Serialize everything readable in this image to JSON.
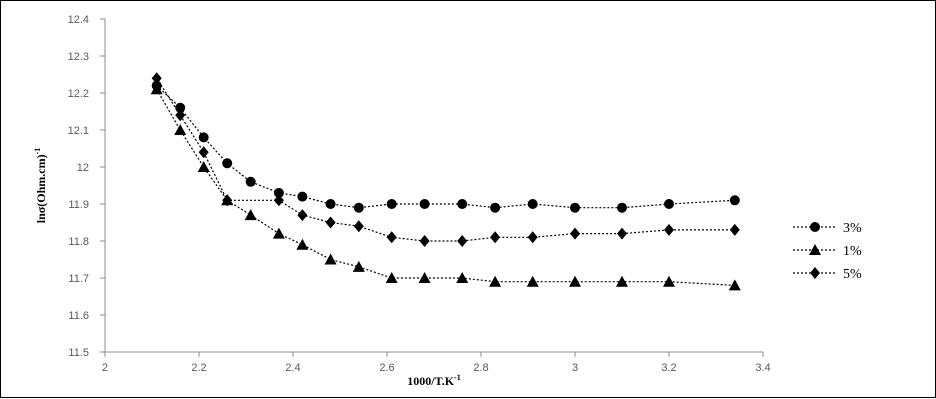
{
  "chart_data": {
    "type": "scatter",
    "title": "",
    "xlabel": "1000/T.K",
    "xlabel_sup": "-1",
    "ylabel": "lnσ(Ohm.cm)",
    "ylabel_sup": "-1",
    "xlim": [
      2,
      3.4
    ],
    "ylim": [
      11.5,
      12.4
    ],
    "x_ticks": [
      "2",
      "2.2",
      "2.4",
      "2.6",
      "2.8",
      "3",
      "3.2",
      "3.4"
    ],
    "y_ticks": [
      "11.5",
      "11.6",
      "11.7",
      "11.8",
      "11.9",
      "12",
      "12.1",
      "12.2",
      "12.3",
      "12.4"
    ],
    "grid": false,
    "legend_position": "right",
    "series": [
      {
        "name": "3%",
        "marker": "circle",
        "points": [
          [
            2.11,
            12.22
          ],
          [
            2.16,
            12.16
          ],
          [
            2.21,
            12.08
          ],
          [
            2.26,
            12.01
          ],
          [
            2.31,
            11.96
          ],
          [
            2.37,
            11.93
          ],
          [
            2.42,
            11.92
          ],
          [
            2.48,
            11.9
          ],
          [
            2.54,
            11.89
          ],
          [
            2.61,
            11.9
          ],
          [
            2.68,
            11.9
          ],
          [
            2.76,
            11.9
          ],
          [
            2.83,
            11.89
          ],
          [
            2.91,
            11.9
          ],
          [
            3.0,
            11.89
          ],
          [
            3.1,
            11.89
          ],
          [
            3.2,
            11.9
          ],
          [
            3.34,
            11.91
          ]
        ]
      },
      {
        "name": "1%",
        "marker": "triangle",
        "points": [
          [
            2.11,
            12.21
          ],
          [
            2.16,
            12.1
          ],
          [
            2.21,
            12.0
          ],
          [
            2.26,
            11.91
          ],
          [
            2.31,
            11.87
          ],
          [
            2.37,
            11.82
          ],
          [
            2.42,
            11.79
          ],
          [
            2.48,
            11.75
          ],
          [
            2.54,
            11.73
          ],
          [
            2.61,
            11.7
          ],
          [
            2.68,
            11.7
          ],
          [
            2.76,
            11.7
          ],
          [
            2.83,
            11.69
          ],
          [
            2.91,
            11.69
          ],
          [
            3.0,
            11.69
          ],
          [
            3.1,
            11.69
          ],
          [
            3.2,
            11.69
          ],
          [
            3.34,
            11.68
          ]
        ]
      },
      {
        "name": "5%",
        "marker": "diamond",
        "points": [
          [
            2.11,
            12.24
          ],
          [
            2.16,
            12.14
          ],
          [
            2.21,
            12.04
          ],
          [
            2.26,
            11.91
          ],
          [
            2.37,
            11.91
          ],
          [
            2.42,
            11.87
          ],
          [
            2.48,
            11.85
          ],
          [
            2.54,
            11.84
          ],
          [
            2.61,
            11.81
          ],
          [
            2.68,
            11.8
          ],
          [
            2.76,
            11.8
          ],
          [
            2.83,
            11.81
          ],
          [
            2.91,
            11.81
          ],
          [
            3.0,
            11.82
          ],
          [
            3.1,
            11.82
          ],
          [
            3.2,
            11.83
          ],
          [
            3.34,
            11.83
          ]
        ]
      }
    ]
  }
}
